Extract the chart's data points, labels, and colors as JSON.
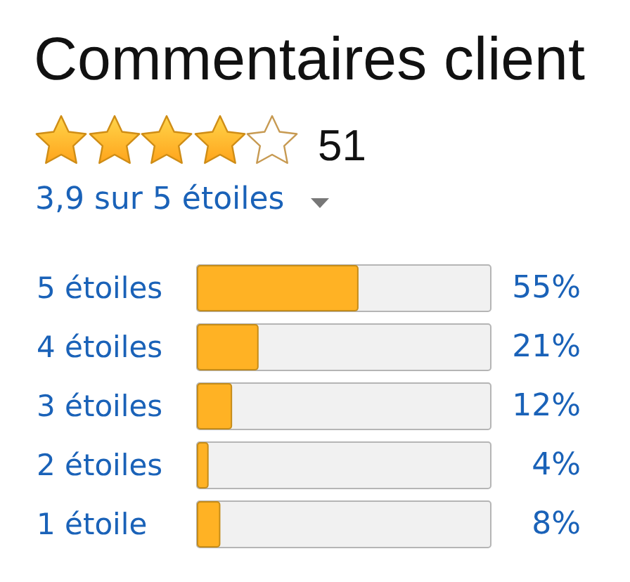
{
  "chart_data": {
    "type": "bar",
    "orientation": "horizontal",
    "title": "Commentaires client",
    "annotations": [
      "51",
      "3,9 sur 5 étoiles"
    ],
    "categories": [
      "5 étoiles",
      "4 étoiles",
      "3 étoiles",
      "2 étoiles",
      "1 étoile"
    ],
    "values": [
      55,
      21,
      12,
      4,
      8
    ],
    "value_labels": [
      "55%",
      "21%",
      "12%",
      "4%",
      "8%"
    ],
    "color": "#ffb224",
    "xlim": [
      0,
      100
    ],
    "tick_labels": "y"
  }
}
